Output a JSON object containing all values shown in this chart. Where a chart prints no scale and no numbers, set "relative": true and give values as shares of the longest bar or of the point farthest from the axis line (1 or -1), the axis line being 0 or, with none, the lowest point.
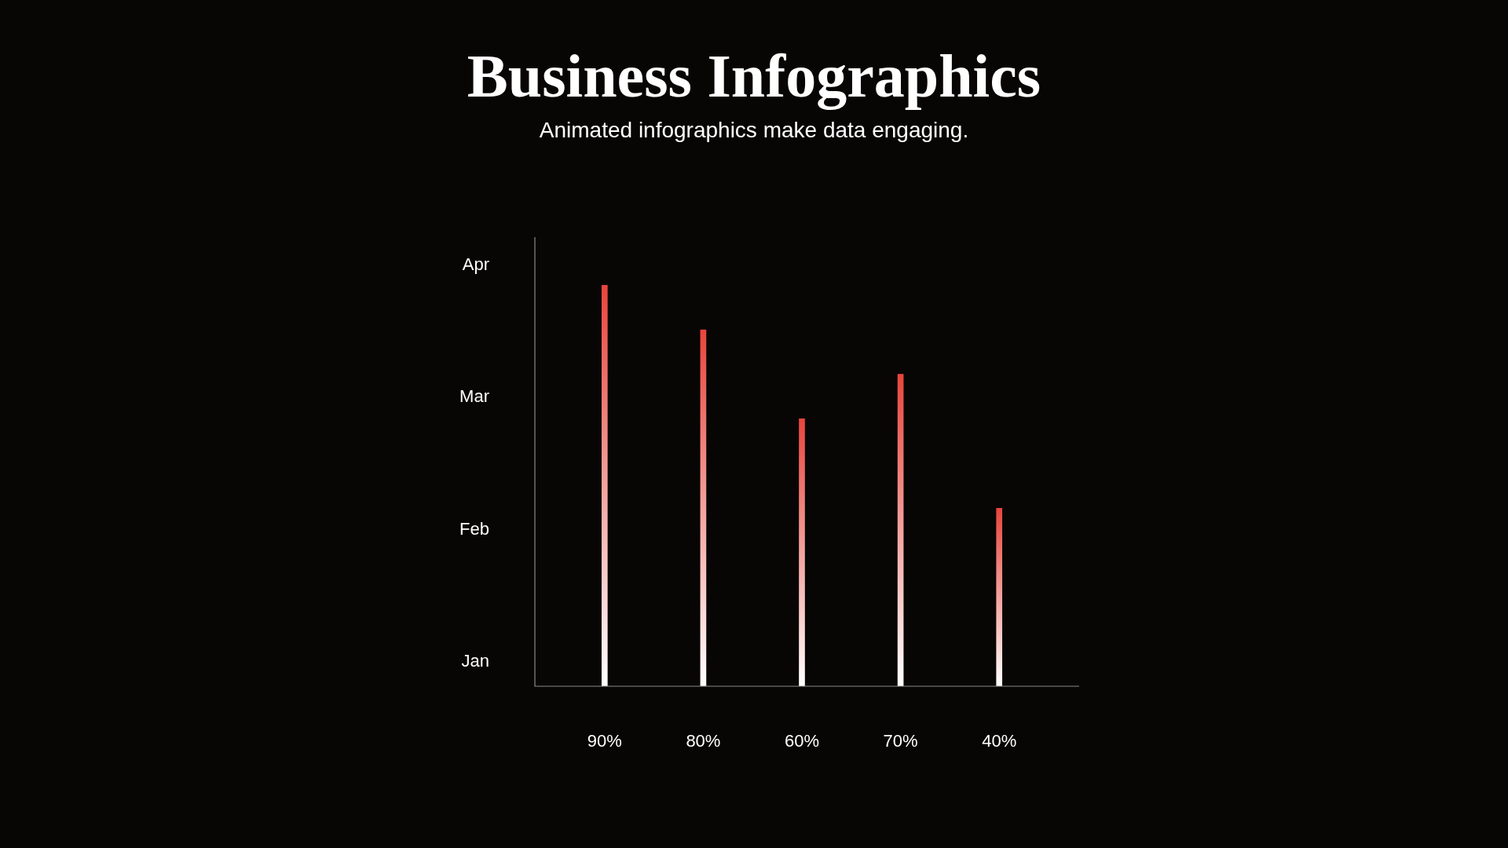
{
  "chart_data": {
    "type": "bar",
    "title": "Business Infographics",
    "subtitle": "Animated infographics make data engaging.",
    "categories": [
      "90%",
      "80%",
      "60%",
      "70%",
      "40%"
    ],
    "values": [
      1,
      0.889,
      0.667,
      0.778,
      0.444
    ],
    "relative": true,
    "color": "#e8453c",
    "annotations": [
      "Apr",
      "Mar",
      "Feb",
      "Jan"
    ],
    "legend": false
  }
}
